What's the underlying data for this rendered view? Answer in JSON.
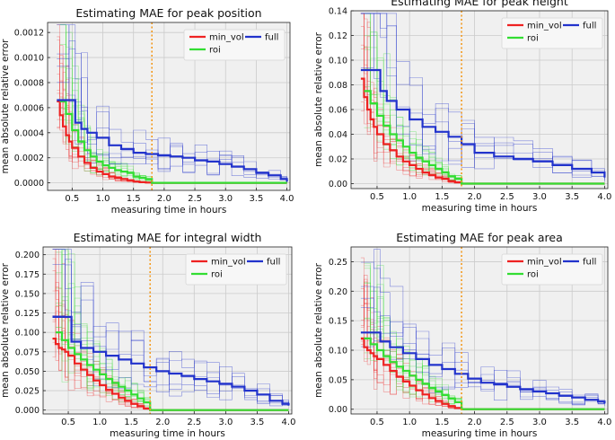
{
  "chart_data": [
    {
      "type": "line",
      "title": "Estimating MAE for peak position",
      "xlabel": "measuring time in hours",
      "ylabel": "mean absolute relative error",
      "xlim": [
        0.1,
        4.05
      ],
      "ylim": [
        -6e-05,
        0.00128
      ],
      "xticks": [
        0.5,
        1.0,
        1.5,
        2.0,
        2.5,
        3.0,
        3.5,
        4.0
      ],
      "xtick_labels": [
        "0.5",
        "1.0",
        "1.5",
        "2.0",
        "2.5",
        "3.0",
        "3.5",
        "4.0"
      ],
      "yticks": [
        0,
        0.0002,
        0.0004,
        0.0006,
        0.0008,
        0.001,
        0.0012
      ],
      "ytick_labels": [
        "0.0000",
        "0.0002",
        "0.0004",
        "0.0006",
        "0.0008",
        "0.0010",
        "0.0012"
      ],
      "vline_x": 1.8,
      "series": [
        {
          "name": "min_vol",
          "color": "#ee2222",
          "x": [
            0.25,
            0.3,
            0.35,
            0.4,
            0.45,
            0.5,
            0.6,
            0.7,
            0.8,
            0.9,
            1.0,
            1.1,
            1.2,
            1.3,
            1.4,
            1.5,
            1.6,
            1.7,
            1.8,
            4.0
          ],
          "values": [
            0.00065,
            0.00054,
            0.00045,
            0.00038,
            0.00033,
            0.00028,
            0.00021,
            0.00016,
            0.00012,
            9e-05,
            7e-05,
            5e-05,
            4e-05,
            3e-05,
            2e-05,
            1e-05,
            5e-06,
            2e-06,
            0,
            0
          ]
        },
        {
          "name": "roi",
          "color": "#33dd33",
          "x": [
            0.3,
            0.4,
            0.5,
            0.6,
            0.7,
            0.8,
            0.9,
            1.0,
            1.1,
            1.2,
            1.3,
            1.4,
            1.5,
            1.6,
            1.7,
            1.8,
            4.0
          ],
          "values": [
            0.00065,
            0.00055,
            0.00042,
            0.00033,
            0.00026,
            0.00021,
            0.00017,
            0.00014,
            0.00012,
            0.0001,
            9e-05,
            8e-05,
            5e-05,
            4e-05,
            3e-05,
            0,
            0
          ]
        },
        {
          "name": "full",
          "color": "#2233cc",
          "x": [
            0.25,
            0.45,
            0.55,
            0.65,
            0.75,
            0.9,
            1.1,
            1.3,
            1.5,
            1.7,
            1.9,
            2.1,
            2.3,
            2.5,
            2.7,
            2.9,
            3.1,
            3.3,
            3.5,
            3.7,
            3.9,
            4.0
          ],
          "values": [
            0.00066,
            0.00066,
            0.00048,
            0.00043,
            0.0004,
            0.00036,
            0.0003,
            0.00027,
            0.00024,
            0.00023,
            0.00022,
            0.00021,
            0.0002,
            0.00018,
            0.00017,
            0.00015,
            0.00013,
            0.00011,
            8e-05,
            6e-05,
            3e-05,
            1e-05
          ]
        }
      ]
    },
    {
      "type": "line",
      "title": "Estimating MAE for peak height",
      "xlabel": "measuring time in hours",
      "ylabel": "mean absolute relative error",
      "xlim": [
        0.1,
        4.05
      ],
      "ylim": [
        -0.004,
        0.14
      ],
      "xticks": [
        0.5,
        1.0,
        1.5,
        2.0,
        2.5,
        3.0,
        3.5,
        4.0
      ],
      "xtick_labels": [
        "0.5",
        "1.0",
        "1.5",
        "2.0",
        "2.5",
        "3.0",
        "3.5",
        "4.0"
      ],
      "yticks": [
        0,
        0.02,
        0.04,
        0.06,
        0.08,
        0.1,
        0.12,
        0.14
      ],
      "ytick_labels": [
        "0.00",
        "0.02",
        "0.04",
        "0.06",
        "0.08",
        "0.10",
        "0.12",
        "0.14"
      ],
      "vline_x": 1.8,
      "series": [
        {
          "name": "min_vol",
          "color": "#ee2222",
          "x": [
            0.25,
            0.3,
            0.35,
            0.4,
            0.45,
            0.5,
            0.6,
            0.7,
            0.8,
            0.9,
            1.0,
            1.1,
            1.2,
            1.3,
            1.4,
            1.5,
            1.6,
            1.7,
            1.8,
            4.0
          ],
          "values": [
            0.085,
            0.07,
            0.06,
            0.052,
            0.046,
            0.04,
            0.032,
            0.027,
            0.022,
            0.018,
            0.015,
            0.012,
            0.009,
            0.007,
            0.005,
            0.004,
            0.002,
            0.001,
            0,
            0
          ]
        },
        {
          "name": "roi",
          "color": "#33dd33",
          "x": [
            0.3,
            0.4,
            0.5,
            0.6,
            0.7,
            0.8,
            0.9,
            1.0,
            1.1,
            1.2,
            1.3,
            1.4,
            1.5,
            1.6,
            1.7,
            1.8,
            4.0
          ],
          "values": [
            0.075,
            0.065,
            0.055,
            0.047,
            0.04,
            0.035,
            0.03,
            0.025,
            0.021,
            0.018,
            0.015,
            0.012,
            0.009,
            0.006,
            0.004,
            0,
            0
          ]
        },
        {
          "name": "full",
          "color": "#2233cc",
          "x": [
            0.25,
            0.45,
            0.55,
            0.65,
            0.8,
            1.0,
            1.2,
            1.4,
            1.6,
            1.8,
            2.0,
            2.3,
            2.6,
            2.9,
            3.2,
            3.5,
            3.8,
            4.0
          ],
          "values": [
            0.092,
            0.092,
            0.075,
            0.067,
            0.06,
            0.052,
            0.046,
            0.042,
            0.038,
            0.032,
            0.025,
            0.022,
            0.02,
            0.018,
            0.015,
            0.012,
            0.009,
            0.005
          ]
        }
      ]
    },
    {
      "type": "line",
      "title": "Estimating MAE for integral width",
      "xlabel": "measuring time in hours",
      "ylabel": "mean absolute relative error",
      "xlim": [
        0.1,
        4.05
      ],
      "ylim": [
        -0.005,
        0.21
      ],
      "xticks": [
        0.5,
        1.0,
        1.5,
        2.0,
        2.5,
        3.0,
        3.5,
        4.0
      ],
      "xtick_labels": [
        "0.5",
        "1.0",
        "1.5",
        "2.0",
        "2.5",
        "3.0",
        "3.5",
        "4.0"
      ],
      "yticks": [
        0,
        0.025,
        0.05,
        0.075,
        0.1,
        0.125,
        0.15,
        0.175,
        0.2
      ],
      "ytick_labels": [
        "0.000",
        "0.025",
        "0.050",
        "0.075",
        "0.100",
        "0.125",
        "0.150",
        "0.175",
        "0.200"
      ],
      "vline_x": 1.8,
      "series": [
        {
          "name": "min_vol",
          "color": "#ee2222",
          "x": [
            0.25,
            0.3,
            0.35,
            0.4,
            0.45,
            0.5,
            0.6,
            0.7,
            0.8,
            0.9,
            1.0,
            1.1,
            1.2,
            1.3,
            1.4,
            1.5,
            1.6,
            1.7,
            1.8,
            4.0
          ],
          "values": [
            0.092,
            0.085,
            0.08,
            0.078,
            0.075,
            0.07,
            0.06,
            0.052,
            0.045,
            0.038,
            0.032,
            0.026,
            0.021,
            0.016,
            0.012,
            0.008,
            0.005,
            0.002,
            0,
            0
          ]
        },
        {
          "name": "roi",
          "color": "#33dd33",
          "x": [
            0.3,
            0.4,
            0.5,
            0.6,
            0.7,
            0.8,
            0.9,
            1.0,
            1.1,
            1.2,
            1.3,
            1.4,
            1.5,
            1.6,
            1.7,
            1.8,
            4.0
          ],
          "values": [
            0.1,
            0.09,
            0.08,
            0.072,
            0.065,
            0.058,
            0.052,
            0.046,
            0.04,
            0.035,
            0.03,
            0.025,
            0.02,
            0.015,
            0.01,
            0,
            0
          ]
        },
        {
          "name": "full",
          "color": "#2233cc",
          "x": [
            0.25,
            0.45,
            0.55,
            0.7,
            0.9,
            1.1,
            1.3,
            1.5,
            1.7,
            1.9,
            2.1,
            2.3,
            2.5,
            2.7,
            2.9,
            3.1,
            3.3,
            3.5,
            3.7,
            3.9,
            4.0
          ],
          "values": [
            0.12,
            0.12,
            0.088,
            0.08,
            0.075,
            0.07,
            0.065,
            0.06,
            0.055,
            0.05,
            0.047,
            0.044,
            0.04,
            0.037,
            0.034,
            0.03,
            0.025,
            0.02,
            0.012,
            0.008,
            0.006
          ]
        }
      ]
    },
    {
      "type": "line",
      "title": "Estimating MAE for peak area",
      "xlabel": "measuring time in hours",
      "ylabel": "mean absolute relative error",
      "xlim": [
        0.1,
        4.05
      ],
      "ylim": [
        -0.008,
        0.275
      ],
      "xticks": [
        0.5,
        1.0,
        1.5,
        2.0,
        2.5,
        3.0,
        3.5,
        4.0
      ],
      "xtick_labels": [
        "0.5",
        "1.0",
        "1.5",
        "2.0",
        "2.5",
        "3.0",
        "3.5",
        "4.0"
      ],
      "yticks": [
        0,
        0.05,
        0.1,
        0.15,
        0.2,
        0.25
      ],
      "ytick_labels": [
        "0.00",
        "0.05",
        "0.10",
        "0.15",
        "0.20",
        "0.25"
      ],
      "vline_x": 1.8,
      "series": [
        {
          "name": "min_vol",
          "color": "#ee2222",
          "x": [
            0.25,
            0.3,
            0.35,
            0.4,
            0.45,
            0.5,
            0.6,
            0.7,
            0.8,
            0.9,
            1.0,
            1.1,
            1.2,
            1.3,
            1.4,
            1.5,
            1.6,
            1.7,
            1.8,
            4.0
          ],
          "values": [
            0.12,
            0.105,
            0.1,
            0.095,
            0.09,
            0.085,
            0.075,
            0.065,
            0.055,
            0.047,
            0.04,
            0.032,
            0.025,
            0.019,
            0.014,
            0.009,
            0.005,
            0.002,
            0,
            0
          ]
        },
        {
          "name": "roi",
          "color": "#33dd33",
          "x": [
            0.3,
            0.4,
            0.5,
            0.6,
            0.7,
            0.8,
            0.9,
            1.0,
            1.1,
            1.2,
            1.3,
            1.4,
            1.5,
            1.6,
            1.7,
            1.8,
            4.0
          ],
          "values": [
            0.12,
            0.11,
            0.1,
            0.09,
            0.08,
            0.072,
            0.065,
            0.057,
            0.05,
            0.043,
            0.036,
            0.03,
            0.024,
            0.018,
            0.012,
            0,
            0
          ]
        },
        {
          "name": "full",
          "color": "#2233cc",
          "x": [
            0.25,
            0.45,
            0.55,
            0.7,
            0.9,
            1.1,
            1.3,
            1.5,
            1.7,
            1.9,
            2.1,
            2.3,
            2.5,
            2.7,
            2.9,
            3.1,
            3.3,
            3.5,
            3.7,
            3.9,
            4.0
          ],
          "values": [
            0.13,
            0.13,
            0.115,
            0.105,
            0.095,
            0.085,
            0.075,
            0.068,
            0.06,
            0.052,
            0.045,
            0.042,
            0.038,
            0.034,
            0.03,
            0.027,
            0.023,
            0.02,
            0.016,
            0.013,
            0.01
          ]
        }
      ]
    }
  ]
}
